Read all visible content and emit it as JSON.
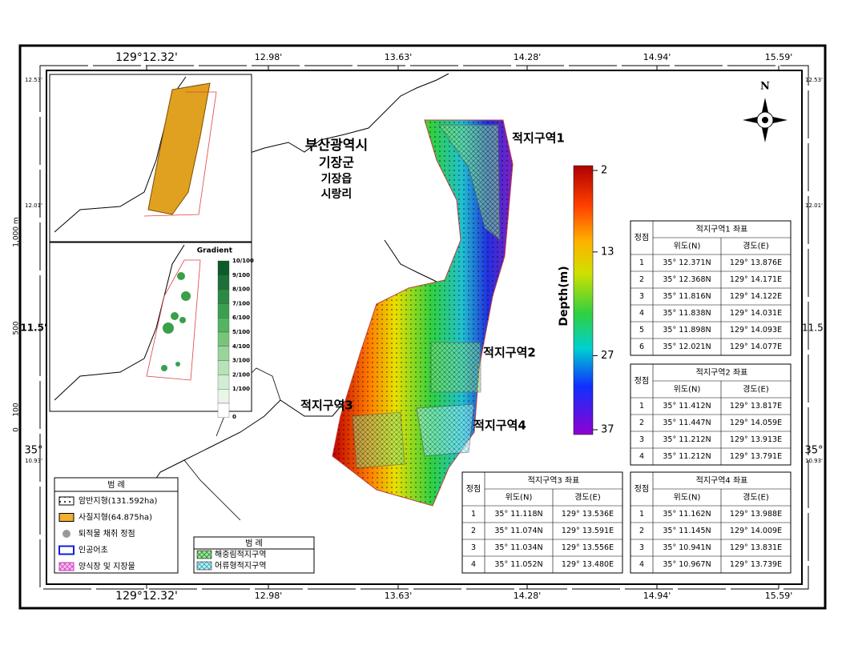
{
  "map": {
    "lon_labels": [
      "129°12.32'",
      "12.98'",
      "13.63'",
      "14.28'",
      "14.94'",
      "15.59'"
    ],
    "lat_labels": {
      "top": "12.53'",
      "upper": "12.01'",
      "mid": "11.5'",
      "low": "10.93'",
      "deg": "35°"
    },
    "scale_labels": [
      "1,000 m",
      "500",
      "100",
      "0"
    ],
    "north": "N",
    "place_labels": [
      "부산광역시",
      "기장군",
      "기장읍",
      "시랑리"
    ],
    "zone_labels": [
      "적지구역1",
      "적지구역2",
      "적지구역3",
      "적지구역4"
    ],
    "colorbar": {
      "label": "Depth(m)",
      "range": [
        2,
        37
      ],
      "ticks": [
        2,
        13,
        27,
        37
      ]
    },
    "inset_gradient": {
      "title": "Gradient",
      "ticks": [
        "10/100",
        "9/100",
        "8/100",
        "7/100",
        "6/100",
        "5/100",
        "4/100",
        "3/100",
        "2/100",
        "1/100",
        "0"
      ]
    },
    "legend1": {
      "title": "범      례",
      "items": [
        "암반지형(131.592ha)",
        "사질지형(64.875ha)",
        "퇴적물 채취 정점",
        "인공어초",
        "양식장 및 지장물"
      ]
    },
    "legend2": {
      "title": "범      례",
      "items": [
        "해중림적지구역",
        "어류형적지구역"
      ]
    },
    "table_headers": [
      "정점",
      "위도(N)",
      "경도(E)"
    ],
    "tables": [
      {
        "title": "적지구역1 좌표",
        "rows": [
          [
            "1",
            "35° 12.371N",
            "129° 13.876E"
          ],
          [
            "2",
            "35° 12.368N",
            "129° 14.171E"
          ],
          [
            "3",
            "35° 11.816N",
            "129° 14.122E"
          ],
          [
            "4",
            "35° 11.838N",
            "129° 14.031E"
          ],
          [
            "5",
            "35° 11.898N",
            "129° 14.093E"
          ],
          [
            "6",
            "35° 12.021N",
            "129° 14.077E"
          ]
        ]
      },
      {
        "title": "적지구역2 좌표",
        "rows": [
          [
            "1",
            "35° 11.412N",
            "129° 13.817E"
          ],
          [
            "2",
            "35° 11.447N",
            "129° 14.059E"
          ],
          [
            "3",
            "35° 11.212N",
            "129° 13.913E"
          ],
          [
            "4",
            "35° 11.212N",
            "129° 13.791E"
          ]
        ]
      },
      {
        "title": "적지구역3 좌표",
        "rows": [
          [
            "1",
            "35° 11.118N",
            "129° 13.536E"
          ],
          [
            "2",
            "35° 11.074N",
            "129° 13.591E"
          ],
          [
            "3",
            "35° 11.034N",
            "129° 13.556E"
          ],
          [
            "4",
            "35° 11.052N",
            "129° 13.480E"
          ]
        ]
      },
      {
        "title": "적지구역4 좌표",
        "rows": [
          [
            "1",
            "35° 11.162N",
            "129° 13.988E"
          ],
          [
            "2",
            "35° 11.145N",
            "129° 14.009E"
          ],
          [
            "3",
            "35° 10.941N",
            "129° 13.831E"
          ],
          [
            "4",
            "35° 10.967N",
            "129° 13.739E"
          ]
        ]
      }
    ]
  }
}
